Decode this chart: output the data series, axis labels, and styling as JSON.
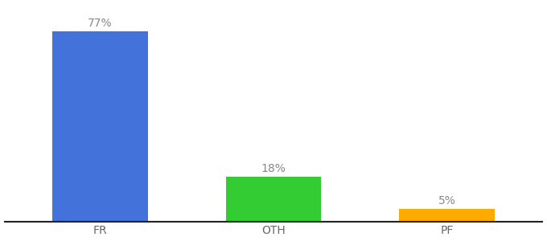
{
  "categories": [
    "FR",
    "OTH",
    "PF"
  ],
  "values": [
    77,
    18,
    5
  ],
  "bar_colors": [
    "#4472db",
    "#33cc33",
    "#ffaa00"
  ],
  "labels": [
    "77%",
    "18%",
    "5%"
  ],
  "ylim": [
    0,
    88
  ],
  "background_color": "#ffffff",
  "label_fontsize": 10,
  "tick_fontsize": 10,
  "bar_width": 0.55,
  "x_positions": [
    0,
    1,
    2
  ],
  "xlim": [
    -0.55,
    2.55
  ]
}
